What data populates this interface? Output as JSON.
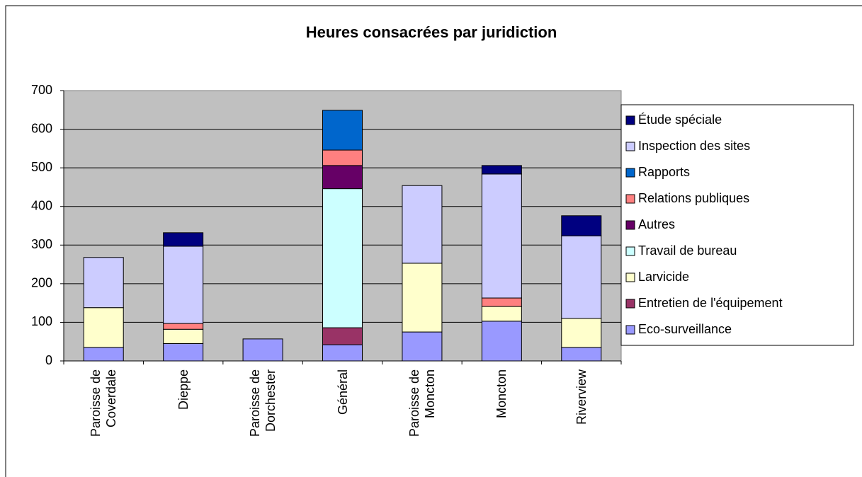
{
  "chart_data": {
    "type": "stacked_bar",
    "title": "Heures consacrées par juridiction",
    "categories": [
      "Paroisse de Coverdale",
      "Dieppe",
      "Paroisse de Dorchester",
      "Général",
      "Paroisse de Moncton",
      "Moncton",
      "Riverview"
    ],
    "series": [
      {
        "name": "Eco-surveillance",
        "color": "#9999ff",
        "values": [
          35,
          45,
          57,
          42,
          75,
          103,
          35
        ]
      },
      {
        "name": "Entretien de l'équipement",
        "color": "#993366",
        "values": [
          null,
          null,
          null,
          44,
          null,
          null,
          null
        ]
      },
      {
        "name": "Larvicide",
        "color": "#ffffcc",
        "values": [
          103,
          37,
          null,
          null,
          178,
          38,
          75
        ]
      },
      {
        "name": "Travail de bureau",
        "color": "#ccffff",
        "values": [
          null,
          null,
          null,
          360,
          null,
          null,
          null
        ]
      },
      {
        "name": "Autres",
        "color": "#660066",
        "values": [
          null,
          null,
          null,
          60,
          null,
          null,
          null
        ]
      },
      {
        "name": "Relations publiques",
        "color": "#ff8080",
        "values": [
          null,
          15,
          null,
          40,
          null,
          22,
          null
        ]
      },
      {
        "name": "Rapports",
        "color": "#0066cc",
        "values": [
          null,
          null,
          null,
          103,
          null,
          null,
          null
        ]
      },
      {
        "name": "Inspection des sites",
        "color": "#ccccff",
        "values": [
          130,
          200,
          null,
          null,
          201,
          321,
          214
        ]
      },
      {
        "name": "Étude spéciale",
        "color": "#000080",
        "values": [
          null,
          35,
          null,
          null,
          null,
          22,
          52
        ]
      }
    ],
    "ylim": [
      0,
      700
    ],
    "yticks": [
      0,
      100,
      200,
      300,
      400,
      500,
      600,
      700
    ],
    "grid": true,
    "legend": "right"
  }
}
